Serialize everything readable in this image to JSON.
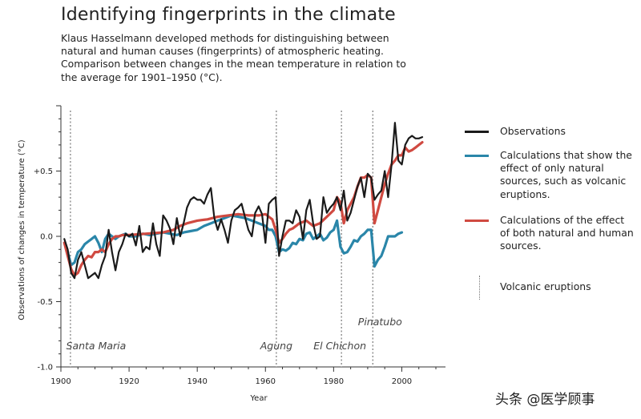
{
  "title": "Identifying fingerprints in the climate",
  "subtitle": "Klaus Hasselmann developed methods for distinguishing between natural and human causes (fingerprints) of atmospheric heating. Comparison between changes in the mean temperature in relation to the average for 1901–1950 (°C).",
  "watermark": "头条 @医学顾事",
  "legend": {
    "observations": "Observations",
    "natural": "Calculations that show the effect of only natural sources, such as volcanic eruptions.",
    "combined": "Calculations of the effect of both natural and human sources.",
    "volcanic": "Volcanic eruptions"
  },
  "colors": {
    "observations": "#1a1a1a",
    "natural": "#2a86a9",
    "combined": "#d04a41",
    "axis": "#333333",
    "volcano_line": "#777777"
  },
  "chart_data": {
    "type": "line",
    "xlabel": "Year",
    "ylabel": "Observations of changes in temperature (°C)",
    "xlim": [
      1900,
      2010
    ],
    "ylim": [
      -1.0,
      1.0
    ],
    "x_ticks": [
      1900,
      1920,
      1940,
      1960,
      1980,
      2000
    ],
    "y_ticks": [
      {
        "value": 0.5,
        "label": "+0.5"
      },
      {
        "value": 0.0,
        "label": "0.0"
      },
      {
        "value": -0.5,
        "label": "-0.5"
      },
      {
        "value": -1.0,
        "label": "-1.0"
      }
    ],
    "volcanic_eruptions": [
      {
        "name": "Santa Maria",
        "year": 1902.8,
        "label_level": "low"
      },
      {
        "name": "Agung",
        "year": 1963.2,
        "label_level": "low"
      },
      {
        "name": "El Chichon",
        "year": 1982.3,
        "label_level": "low"
      },
      {
        "name": "Pinatubo",
        "year": 1991.5,
        "label_level": "high"
      }
    ],
    "series": [
      {
        "name": "Observations",
        "x": [
          1901,
          1902,
          1903,
          1904,
          1905,
          1906,
          1907,
          1908,
          1909,
          1910,
          1911,
          1912,
          1913,
          1914,
          1915,
          1916,
          1917,
          1918,
          1919,
          1920,
          1921,
          1922,
          1923,
          1924,
          1925,
          1926,
          1927,
          1928,
          1929,
          1930,
          1931,
          1932,
          1933,
          1934,
          1935,
          1936,
          1937,
          1938,
          1939,
          1940,
          1941,
          1942,
          1943,
          1944,
          1945,
          1946,
          1947,
          1948,
          1949,
          1950,
          1951,
          1952,
          1953,
          1954,
          1955,
          1956,
          1957,
          1958,
          1959,
          1960,
          1961,
          1962,
          1963,
          1964,
          1965,
          1966,
          1967,
          1968,
          1969,
          1970,
          1971,
          1972,
          1973,
          1974,
          1975,
          1976,
          1977,
          1978,
          1979,
          1980,
          1981,
          1982,
          1983,
          1984,
          1985,
          1986,
          1987,
          1988,
          1989,
          1990,
          1991,
          1992,
          1993,
          1994,
          1995,
          1996,
          1997,
          1998,
          1999,
          2000,
          2001,
          2002,
          2003,
          2004,
          2005,
          2006
        ],
        "values": [
          -0.02,
          -0.1,
          -0.28,
          -0.32,
          -0.18,
          -0.12,
          -0.22,
          -0.32,
          -0.3,
          -0.28,
          -0.32,
          -0.22,
          -0.15,
          0.05,
          -0.12,
          -0.26,
          -0.12,
          -0.06,
          0.02,
          0.0,
          0.02,
          -0.07,
          0.08,
          -0.12,
          -0.08,
          -0.1,
          0.1,
          -0.06,
          -0.15,
          0.16,
          0.12,
          0.06,
          -0.06,
          0.14,
          0.0,
          0.1,
          0.22,
          0.28,
          0.3,
          0.28,
          0.28,
          0.25,
          0.32,
          0.37,
          0.14,
          0.05,
          0.13,
          0.05,
          -0.05,
          0.12,
          0.2,
          0.22,
          0.25,
          0.15,
          0.05,
          0.0,
          0.18,
          0.23,
          0.17,
          -0.05,
          0.25,
          0.28,
          0.3,
          -0.15,
          0.0,
          0.12,
          0.12,
          0.1,
          0.2,
          0.15,
          -0.02,
          0.2,
          0.28,
          0.1,
          -0.02,
          0.0,
          0.3,
          0.18,
          0.22,
          0.25,
          0.3,
          0.2,
          0.35,
          0.12,
          0.18,
          0.28,
          0.38,
          0.45,
          0.3,
          0.48,
          0.45,
          0.28,
          0.32,
          0.35,
          0.5,
          0.3,
          0.55,
          0.87,
          0.58,
          0.55,
          0.7,
          0.75,
          0.77,
          0.75,
          0.75,
          0.76
        ]
      },
      {
        "name": "Calculations that show the effect of only natural sources, such as volcanic eruptions.",
        "x": [
          1901,
          1902,
          1903,
          1904,
          1905,
          1906,
          1907,
          1908,
          1909,
          1910,
          1911,
          1912,
          1913,
          1914,
          1915,
          1916,
          1917,
          1918,
          1919,
          1920,
          1922,
          1924,
          1926,
          1928,
          1930,
          1932,
          1934,
          1936,
          1938,
          1940,
          1942,
          1944,
          1946,
          1948,
          1950,
          1952,
          1954,
          1956,
          1958,
          1960,
          1961,
          1962,
          1963,
          1964,
          1965,
          1966,
          1967,
          1968,
          1969,
          1970,
          1971,
          1972,
          1973,
          1974,
          1975,
          1976,
          1977,
          1978,
          1979,
          1980,
          1981,
          1982,
          1983,
          1984,
          1985,
          1986,
          1987,
          1988,
          1989,
          1990,
          1991,
          1992,
          1993,
          1994,
          1995,
          1996,
          1997,
          1998,
          1999,
          2000
        ],
        "values": [
          -0.05,
          -0.12,
          -0.22,
          -0.2,
          -0.12,
          -0.1,
          -0.06,
          -0.04,
          -0.02,
          0.0,
          -0.05,
          -0.12,
          -0.02,
          0.02,
          0.0,
          -0.02,
          0.0,
          0.01,
          0.02,
          0.0,
          0.0,
          0.02,
          0.01,
          0.02,
          0.03,
          0.02,
          0.01,
          0.03,
          0.04,
          0.05,
          0.08,
          0.1,
          0.12,
          0.14,
          0.16,
          0.15,
          0.14,
          0.12,
          0.1,
          0.08,
          0.05,
          0.05,
          0.0,
          -0.12,
          -0.1,
          -0.11,
          -0.09,
          -0.05,
          -0.06,
          -0.02,
          -0.03,
          0.02,
          0.03,
          -0.02,
          0.0,
          0.02,
          -0.03,
          -0.01,
          0.03,
          0.05,
          0.12,
          -0.08,
          -0.13,
          -0.12,
          -0.08,
          -0.03,
          -0.04,
          0.0,
          0.02,
          0.05,
          0.05,
          -0.23,
          -0.18,
          -0.15,
          -0.08,
          0.0,
          0.0,
          0.0,
          0.02,
          0.03
        ]
      },
      {
        "name": "Calculations of the effect of both natural and human sources.",
        "x": [
          1901,
          1902,
          1903,
          1904,
          1905,
          1906,
          1907,
          1908,
          1909,
          1910,
          1911,
          1912,
          1913,
          1914,
          1915,
          1916,
          1917,
          1918,
          1920,
          1925,
          1930,
          1933,
          1935,
          1937,
          1940,
          1943,
          1946,
          1949,
          1952,
          1955,
          1958,
          1960,
          1961,
          1962,
          1963,
          1964,
          1965,
          1966,
          1967,
          1968,
          1970,
          1972,
          1974,
          1976,
          1978,
          1980,
          1981,
          1982,
          1983,
          1984,
          1985,
          1986,
          1987,
          1988,
          1989,
          1990,
          1991,
          1992,
          1993,
          1994,
          1995,
          1996,
          1997,
          1998,
          1999,
          2000,
          2001,
          2002,
          2003,
          2004,
          2005,
          2006
        ],
        "values": [
          -0.05,
          -0.15,
          -0.25,
          -0.3,
          -0.28,
          -0.22,
          -0.18,
          -0.15,
          -0.16,
          -0.12,
          -0.12,
          -0.1,
          -0.12,
          -0.06,
          -0.02,
          0.0,
          0.0,
          0.01,
          0.01,
          0.02,
          0.03,
          0.05,
          0.08,
          0.1,
          0.12,
          0.13,
          0.15,
          0.16,
          0.17,
          0.16,
          0.16,
          0.17,
          0.15,
          0.13,
          0.05,
          -0.05,
          -0.02,
          0.02,
          0.05,
          0.06,
          0.1,
          0.12,
          0.08,
          0.1,
          0.15,
          0.2,
          0.3,
          0.26,
          0.1,
          0.2,
          0.25,
          0.3,
          0.38,
          0.45,
          0.45,
          0.47,
          0.45,
          0.1,
          0.2,
          0.3,
          0.4,
          0.48,
          0.55,
          0.58,
          0.62,
          0.62,
          0.68,
          0.65,
          0.66,
          0.68,
          0.7,
          0.72
        ]
      }
    ]
  }
}
